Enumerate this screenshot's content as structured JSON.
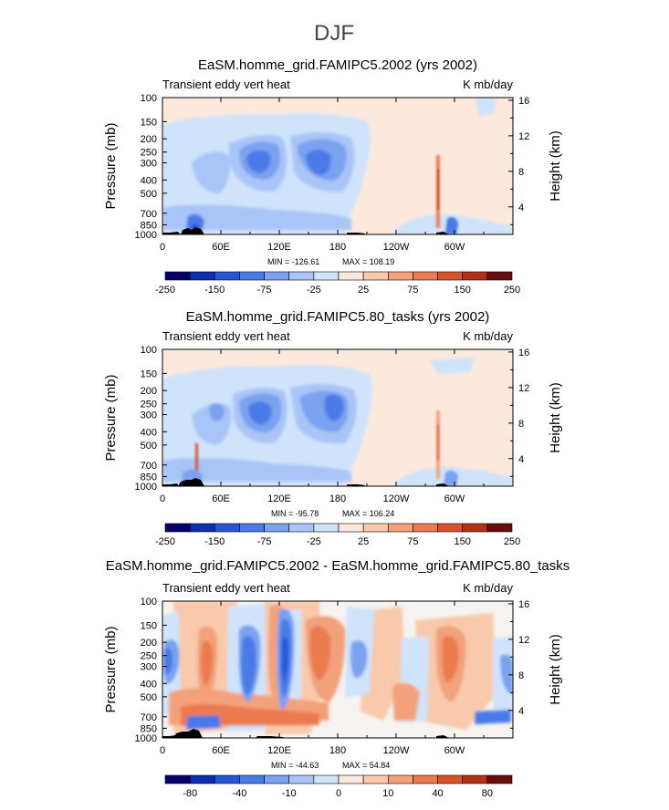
{
  "page_title": "DJF",
  "chart_data": [
    {
      "type": "heatmap",
      "title": "EaSM.homme_grid.FAMIPC5.2002 (yrs 2002)",
      "left_string": "Transient eddy vert heat",
      "right_string": "K mb/day",
      "ylabel": "Pressure (mb)",
      "y2label": "Height (km)",
      "x_ticks": [
        "0",
        "60E",
        "120E",
        "180",
        "120W",
        "60W"
      ],
      "x_tick_lon": [
        0,
        60,
        120,
        180,
        240,
        300
      ],
      "xlim": [
        0,
        360
      ],
      "y_ticks": [
        "100",
        "150",
        "200",
        "250",
        "300",
        "400",
        "500",
        "700",
        "850",
        "1000"
      ],
      "y_tick_p": [
        100,
        150,
        200,
        250,
        300,
        400,
        500,
        700,
        850,
        1000
      ],
      "ylim": [
        1000,
        100
      ],
      "y_scale": "log",
      "y2_ticks": [
        "4",
        "8",
        "12",
        "16"
      ],
      "y2_tick_km": [
        4,
        8,
        12,
        16
      ],
      "min_label": "MIN = -126.61",
      "max_label": "MAX = 108.19",
      "colorbar_labels": [
        "-250",
        "-150",
        "-75",
        "-25",
        "25",
        "75",
        "150",
        "250"
      ]
    },
    {
      "type": "heatmap",
      "title": "EaSM.homme_grid.FAMIPC5.80_tasks (yrs 2002)",
      "left_string": "Transient eddy vert heat",
      "right_string": "K mb/day",
      "ylabel": "Pressure (mb)",
      "y2label": "Height (km)",
      "x_ticks": [
        "0",
        "60E",
        "120E",
        "180",
        "120W",
        "60W"
      ],
      "x_tick_lon": [
        0,
        60,
        120,
        180,
        240,
        300
      ],
      "xlim": [
        0,
        360
      ],
      "y_ticks": [
        "100",
        "150",
        "200",
        "250",
        "300",
        "400",
        "500",
        "700",
        "850",
        "1000"
      ],
      "y_tick_p": [
        100,
        150,
        200,
        250,
        300,
        400,
        500,
        700,
        850,
        1000
      ],
      "ylim": [
        1000,
        100
      ],
      "y_scale": "log",
      "y2_ticks": [
        "4",
        "8",
        "12",
        "16"
      ],
      "y2_tick_km": [
        4,
        8,
        12,
        16
      ],
      "min_label": "MIN = -95.78",
      "max_label": "MAX = 106.24",
      "colorbar_labels": [
        "-250",
        "-150",
        "-75",
        "-25",
        "25",
        "75",
        "150",
        "250"
      ]
    },
    {
      "type": "heatmap",
      "title": "EaSM.homme_grid.FAMIPC5.2002 - EaSM.homme_grid.FAMIPC5.80_tasks",
      "left_string": "Transient eddy vert heat",
      "right_string": "K mb/day",
      "ylabel": "Pressure (mb)",
      "y2label": "Height (km)",
      "x_ticks": [
        "0",
        "60E",
        "120E",
        "180",
        "120W",
        "60W"
      ],
      "x_tick_lon": [
        0,
        60,
        120,
        180,
        240,
        300
      ],
      "xlim": [
        0,
        360
      ],
      "y_ticks": [
        "100",
        "150",
        "200",
        "250",
        "300",
        "400",
        "500",
        "700",
        "850",
        "1000"
      ],
      "y_tick_p": [
        100,
        150,
        200,
        250,
        300,
        400,
        500,
        700,
        850,
        1000
      ],
      "ylim": [
        1000,
        100
      ],
      "y_scale": "log",
      "y2_ticks": [
        "4",
        "8",
        "12",
        "16"
      ],
      "y2_tick_km": [
        4,
        8,
        12,
        16
      ],
      "min_label": "MIN = -44.63",
      "max_label": "MAX = 54.84",
      "colorbar_labels": [
        "-80",
        "-40",
        "-10",
        "0",
        "10",
        "40",
        "80"
      ]
    }
  ],
  "colors": {
    "palette": [
      "#06006a",
      "#0c2fb0",
      "#2556d8",
      "#4a7ae8",
      "#7aa2f0",
      "#a9c5f7",
      "#cfe3fb",
      "#fde9dc",
      "#f8c9ab",
      "#f2a17a",
      "#ec7a50",
      "#d8532c",
      "#b13216",
      "#6a0d0d"
    ],
    "background_abs": "#fde9dc",
    "background_diff": "#f5f2f0",
    "topography": "#000000"
  }
}
